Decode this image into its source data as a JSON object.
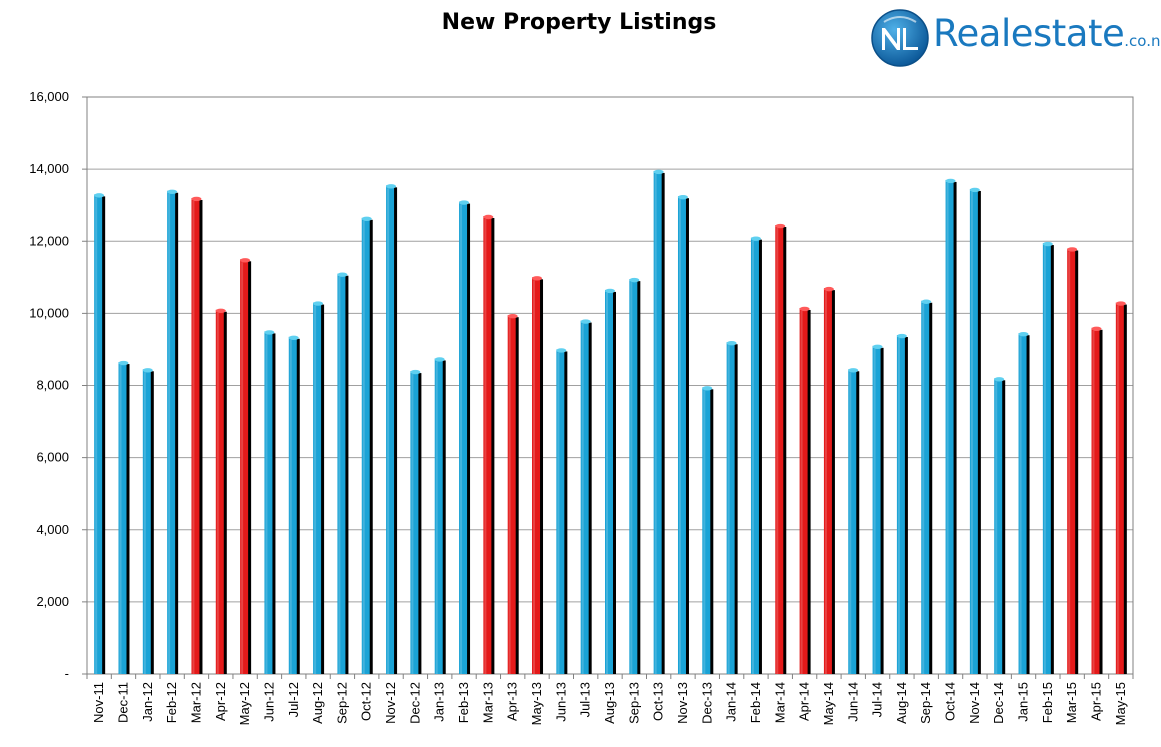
{
  "chart_data": {
    "type": "bar",
    "title": "New Property Listings",
    "xlabel": "",
    "ylabel": "",
    "ylim": [
      0,
      16000
    ],
    "yticks": [
      {
        "value": 0,
        "label": "-"
      },
      {
        "value": 2000,
        "label": "2,000"
      },
      {
        "value": 4000,
        "label": "4,000"
      },
      {
        "value": 6000,
        "label": "6,000"
      },
      {
        "value": 8000,
        "label": "8,000"
      },
      {
        "value": 10000,
        "label": "10,000"
      },
      {
        "value": 12000,
        "label": "12,000"
      },
      {
        "value": 14000,
        "label": "14,000"
      },
      {
        "value": 16000,
        "label": "16,000"
      }
    ],
    "grid": true,
    "categories": [
      "Nov-11",
      "Dec-11",
      "Jan-12",
      "Feb-12",
      "Mar-12",
      "Apr-12",
      "May-12",
      "Jun-12",
      "Jul-12",
      "Aug-12",
      "Sep-12",
      "Oct-12",
      "Nov-12",
      "Dec-12",
      "Jan-13",
      "Feb-13",
      "Mar-13",
      "Apr-13",
      "May-13",
      "Jun-13",
      "Jul-13",
      "Aug-13",
      "Sep-13",
      "Oct-13",
      "Nov-13",
      "Dec-13",
      "Jan-14",
      "Feb-14",
      "Mar-14",
      "Apr-14",
      "May-14",
      "Jun-14",
      "Jul-14",
      "Aug-14",
      "Sep-14",
      "Oct-14",
      "Nov-14",
      "Dec-14",
      "Jan-15",
      "Feb-15",
      "Mar-15",
      "Apr-15",
      "May-15"
    ],
    "values": [
      13300,
      8650,
      8450,
      13400,
      13200,
      10100,
      11500,
      9500,
      9350,
      10300,
      11100,
      12650,
      13550,
      8400,
      8750,
      13100,
      12700,
      9950,
      11000,
      9000,
      9800,
      10650,
      10950,
      13950,
      13250,
      7950,
      9200,
      12100,
      12450,
      10150,
      10700,
      8450,
      9100,
      9400,
      10350,
      13700,
      13450,
      8200,
      9450,
      11950,
      11800,
      9600,
      10300
    ],
    "highlight": [
      false,
      false,
      false,
      false,
      true,
      true,
      true,
      false,
      false,
      false,
      false,
      false,
      false,
      false,
      false,
      false,
      true,
      true,
      true,
      false,
      false,
      false,
      false,
      false,
      false,
      false,
      false,
      false,
      true,
      true,
      true,
      false,
      false,
      false,
      false,
      false,
      false,
      false,
      false,
      false,
      true,
      true,
      true
    ],
    "colors": {
      "bar": "#1aa3d6",
      "bar_top": "#5fd0f0",
      "highlight": "#e41a1a",
      "highlight_top": "#ff5a5a",
      "shadow": "#000000",
      "grid": "#a0a0a0",
      "axis": "#808080"
    }
  },
  "logo": {
    "brand": "Realestate",
    "suffix": ".co.nz",
    "mark": "NZ",
    "color": "#1a79bf"
  }
}
